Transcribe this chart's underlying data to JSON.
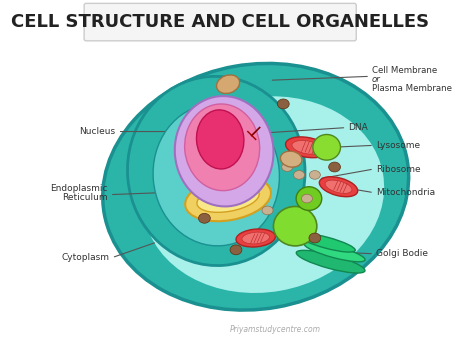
{
  "title": "CELL STRUCTURE AND CELL ORGANELLES",
  "title_fontsize": 13,
  "title_box_color": "#f5f5f5",
  "title_box_edge": "#cccccc",
  "background_color": "#ffffff",
  "watermark": "Priyamstudycentre.com",
  "labels": {
    "cell_membrane": [
      "Cell Membrane",
      "or",
      "Plasma Membrane"
    ],
    "dna": "DNA",
    "nucleus": "Nucleus",
    "endoplasmic": [
      "Endoplasmic",
      "Reticulum"
    ],
    "lysosome": "Lysosome",
    "ribosome": "Ribosome",
    "mitochondria": "Mitochondria",
    "cytoplasm": "Cytoplasm",
    "golgi": "Golgi Bodie"
  },
  "colors": {
    "outer_cell_dark": "#2ab5a8",
    "outer_cell_light": "#5dddd0",
    "outer_cell_fill": "#7ee8e0",
    "cytoplasm_fill": "#a8f0ea",
    "inner_cell_fill": "#5bcfca",
    "nucleus_outer": "#d4a8e8",
    "nucleus_inner": "#f080b0",
    "nucleolus": "#e83070",
    "er_color": "#f0d060",
    "er_dark": "#d4a020",
    "mitochondria_outer": "#e84040",
    "mitochondria_inner": "#f08080",
    "lysosome_color": "#90e040",
    "ribosome_color": "#c8b090",
    "golgi_color": "#40c890",
    "brown_spot": "#8B6040",
    "label_color": "#333333",
    "line_color": "#555555"
  }
}
